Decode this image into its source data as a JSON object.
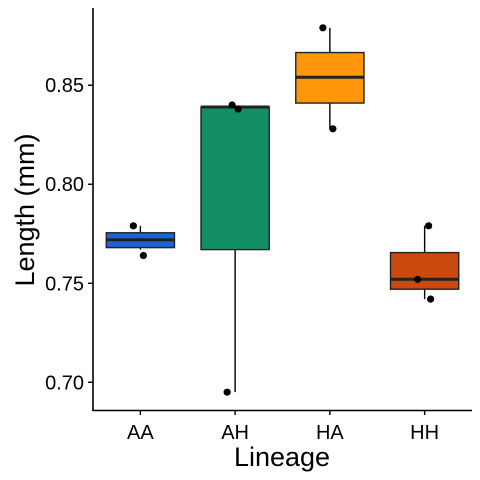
{
  "chart_data": {
    "type": "boxplot",
    "xlabel": "Lineage",
    "ylabel": "Length (mm)",
    "ylim": [
      0.686,
      0.889
    ],
    "yticks": [
      0.7,
      0.75,
      0.8,
      0.85
    ],
    "ytick_labels": [
      "0.70",
      "0.75",
      "0.80",
      "0.85"
    ],
    "categories": [
      "AA",
      "AH",
      "HA",
      "HH"
    ],
    "boxes": [
      {
        "category": "AA",
        "color": "#1A63D9",
        "whisker_low": 0.767,
        "q1": 0.768,
        "median": 0.772,
        "q3": 0.7755,
        "whisker_high": 0.779,
        "points": [
          0.779,
          0.764
        ]
      },
      {
        "category": "AH",
        "color": "#138F66",
        "whisker_low": 0.695,
        "q1": 0.767,
        "median": 0.839,
        "q3": 0.839,
        "whisker_high": 0.84,
        "points": [
          0.84,
          0.838,
          0.695
        ]
      },
      {
        "category": "HA",
        "color": "#FF960C",
        "whisker_low": 0.828,
        "q1": 0.841,
        "median": 0.854,
        "q3": 0.8665,
        "whisker_high": 0.879,
        "points": [
          0.879,
          0.828
        ]
      },
      {
        "category": "HH",
        "color": "#CA490F",
        "whisker_low": 0.742,
        "q1": 0.747,
        "median": 0.752,
        "q3": 0.7655,
        "whisker_high": 0.779,
        "points": [
          0.779,
          0.752,
          0.742
        ]
      }
    ],
    "legend": "none",
    "grid": false
  }
}
